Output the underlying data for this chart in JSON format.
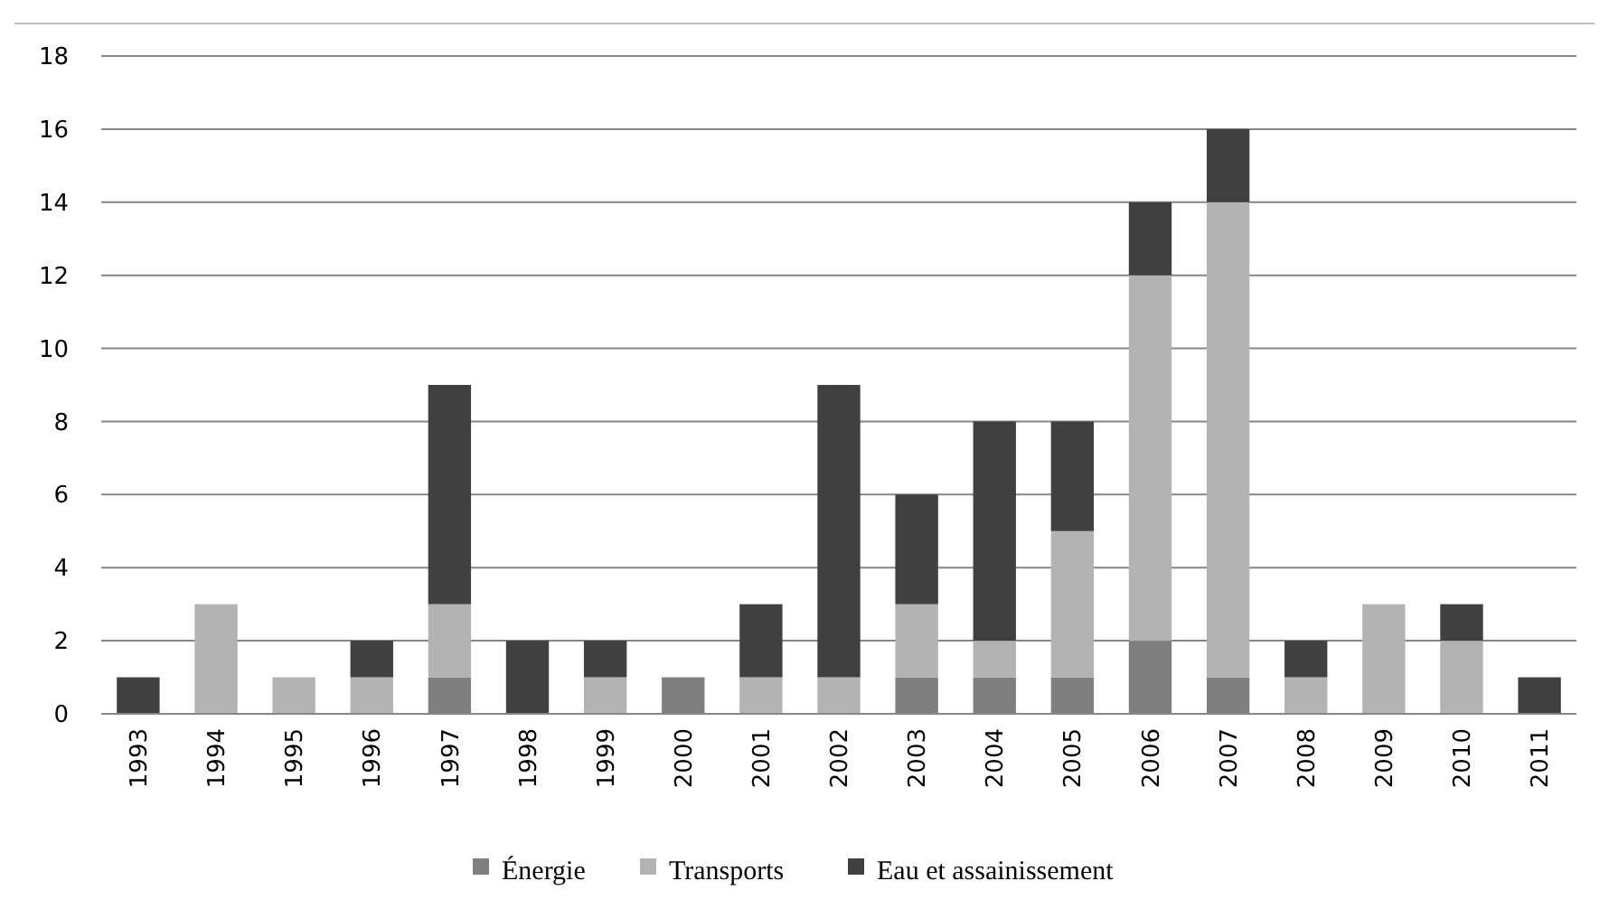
{
  "chart_data": {
    "type": "bar",
    "stacked": true,
    "categories": [
      "1993",
      "1994",
      "1995",
      "1996",
      "1997",
      "1998",
      "1999",
      "2000",
      "2001",
      "2002",
      "2003",
      "2004",
      "2005",
      "2006",
      "2007",
      "2008",
      "2009",
      "2010",
      "2011"
    ],
    "series": [
      {
        "name": "Énergie",
        "color": "#7f7f7f",
        "values": [
          0,
          0,
          0,
          0,
          1,
          0,
          0,
          1,
          0,
          0,
          1,
          1,
          1,
          2,
          1,
          0,
          0,
          0,
          0
        ]
      },
      {
        "name": "Transports",
        "color": "#b3b3b3",
        "values": [
          0,
          3,
          1,
          1,
          2,
          0,
          1,
          0,
          1,
          1,
          2,
          1,
          4,
          10,
          13,
          1,
          3,
          2,
          0
        ]
      },
      {
        "name": "Eau et assainissement",
        "color": "#404040",
        "values": [
          1,
          0,
          0,
          1,
          6,
          2,
          1,
          0,
          2,
          8,
          3,
          6,
          3,
          2,
          2,
          1,
          0,
          1,
          1
        ]
      }
    ],
    "ylim": [
      0,
      18
    ],
    "yticks": [
      0,
      2,
      4,
      6,
      8,
      10,
      12,
      14,
      16,
      18
    ],
    "grid": "y",
    "legend": "bottom"
  }
}
